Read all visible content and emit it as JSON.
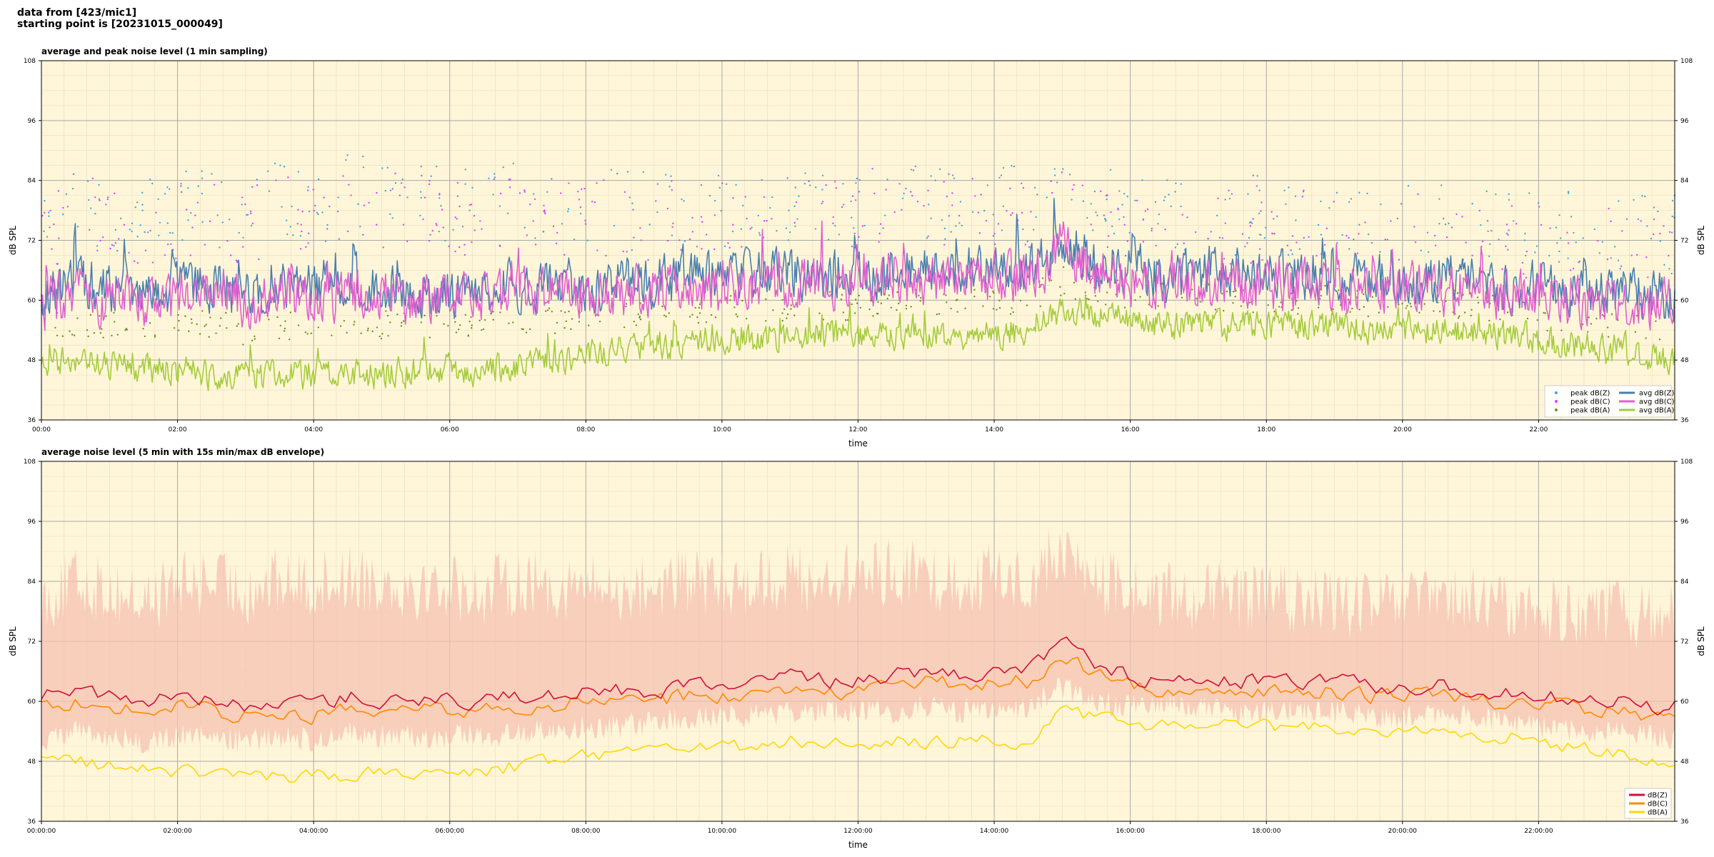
{
  "header": {
    "line1": "data from [423/mic1]",
    "line2": "starting point is [20231015_000049]"
  },
  "colors": {
    "plot_bg": "#fff6d9",
    "grid_major": "#a9a9a9",
    "grid_minor": "#e6dcb9",
    "peak_z": "#3fa7d6",
    "peak_c": "#e040fb",
    "peak_a": "#6b8e23",
    "avg_z": "#4a7fb0",
    "avg_c": "#e060d0",
    "avg_a": "#a4cc3c",
    "z": "#d0103a",
    "c": "#ff8a00",
    "a": "#ffd700",
    "envelope": "#f5c2b0"
  },
  "chart_data": [
    {
      "type": "line",
      "title": "average and peak noise level (1 min sampling)",
      "xlabel": "time",
      "ylabel": "dB SPL",
      "xlim": [
        "00:00",
        "24:00"
      ],
      "ylim": [
        36,
        108
      ],
      "yticks": [
        36,
        48,
        60,
        72,
        84,
        96,
        108
      ],
      "xtick_labels": [
        "00:00",
        "02:00",
        "04:00",
        "06:00",
        "08:00",
        "10:00",
        "12:00",
        "14:00",
        "16:00",
        "18:00",
        "20:00",
        "22:00"
      ],
      "grid": true,
      "legend_position": "bottom-right",
      "x_hours": [
        0,
        0.5,
        1,
        1.5,
        2,
        2.5,
        3,
        3.5,
        4,
        4.5,
        5,
        5.5,
        6,
        6.5,
        7,
        7.5,
        8,
        8.5,
        9,
        9.5,
        10,
        10.5,
        11,
        11.5,
        12,
        12.5,
        13,
        13.5,
        14,
        14.5,
        15,
        15.5,
        16,
        16.5,
        17,
        17.5,
        18,
        18.5,
        19,
        19.5,
        20,
        20.5,
        21,
        21.5,
        22,
        22.5,
        23,
        23.5,
        24
      ],
      "series": [
        {
          "name": "peak dB(Z)",
          "style": "dots",
          "values": [
            74,
            80,
            78,
            76,
            78,
            79,
            77,
            80,
            78,
            82,
            80,
            79,
            79,
            78,
            80,
            79,
            79,
            78,
            78,
            79,
            78,
            79,
            80,
            79,
            80,
            81,
            80,
            79,
            80,
            79,
            84,
            79,
            78,
            77,
            77,
            77,
            77,
            76,
            76,
            75,
            76,
            76,
            76,
            75,
            74,
            74,
            74,
            73,
            73
          ]
        },
        {
          "name": "peak dB(C)",
          "style": "dots",
          "values": [
            72,
            78,
            76,
            74,
            76,
            77,
            75,
            78,
            76,
            80,
            78,
            77,
            77,
            76,
            78,
            77,
            77,
            76,
            76,
            77,
            76,
            77,
            78,
            77,
            78,
            79,
            78,
            77,
            78,
            77,
            82,
            77,
            76,
            75,
            75,
            75,
            75,
            74,
            74,
            73,
            74,
            74,
            74,
            73,
            72,
            72,
            72,
            71,
            71
          ]
        },
        {
          "name": "peak dB(A)",
          "style": "dots",
          "values": [
            54,
            56,
            55,
            54,
            55,
            55,
            54,
            55,
            54,
            56,
            55,
            55,
            55,
            55,
            56,
            56,
            57,
            57,
            58,
            58,
            58,
            58,
            59,
            59,
            59,
            59,
            60,
            59,
            60,
            60,
            64,
            62,
            61,
            61,
            61,
            60,
            60,
            60,
            60,
            59,
            59,
            59,
            59,
            58,
            57,
            56,
            55,
            55,
            54
          ]
        },
        {
          "name": "avg dB(Z)",
          "style": "line",
          "values": [
            61,
            64,
            62,
            61,
            62,
            63,
            61,
            63,
            62,
            64,
            63,
            62,
            62,
            62,
            63,
            63,
            63,
            63,
            64,
            64,
            64,
            65,
            65,
            65,
            65,
            66,
            66,
            66,
            66,
            66,
            73,
            67,
            66,
            65,
            65,
            65,
            65,
            65,
            64,
            64,
            64,
            64,
            64,
            63,
            63,
            62,
            62,
            61,
            61
          ]
        },
        {
          "name": "avg dB(C)",
          "style": "line",
          "values": [
            59,
            62,
            60,
            59,
            60,
            61,
            59,
            61,
            60,
            62,
            61,
            60,
            60,
            60,
            61,
            61,
            61,
            61,
            62,
            62,
            62,
            63,
            63,
            63,
            63,
            64,
            64,
            64,
            64,
            64,
            71,
            65,
            64,
            63,
            63,
            63,
            63,
            63,
            62,
            62,
            62,
            62,
            62,
            61,
            61,
            60,
            60,
            59,
            59
          ]
        },
        {
          "name": "avg dB(A)",
          "style": "line",
          "values": [
            48,
            48,
            47,
            46,
            46,
            45,
            45,
            45,
            45,
            45,
            45,
            46,
            46,
            46,
            47,
            48,
            49,
            50,
            51,
            51,
            52,
            52,
            53,
            53,
            53,
            53,
            53,
            53,
            53,
            53,
            58,
            57,
            56,
            55,
            55,
            55,
            55,
            55,
            55,
            54,
            54,
            54,
            54,
            53,
            52,
            51,
            50,
            49,
            48
          ]
        }
      ]
    },
    {
      "type": "line",
      "title": "average noise level (5 min with 15s min/max dB envelope)",
      "xlabel": "time",
      "ylabel": "dB SPL",
      "xlim": [
        "00:00:00",
        "24:00:00"
      ],
      "ylim": [
        36,
        108
      ],
      "yticks": [
        36,
        48,
        60,
        72,
        84,
        96,
        108
      ],
      "xtick_labels": [
        "00:00:00",
        "02:00:00",
        "04:00:00",
        "06:00:00",
        "08:00:00",
        "10:00:00",
        "12:00:00",
        "14:00:00",
        "16:00:00",
        "18:00:00",
        "20:00:00",
        "22:00:00"
      ],
      "grid": true,
      "legend_position": "bottom-right",
      "x_hours": [
        0,
        0.5,
        1,
        1.5,
        2,
        2.5,
        3,
        3.5,
        4,
        4.5,
        5,
        5.5,
        6,
        6.5,
        7,
        7.5,
        8,
        8.5,
        9,
        9.5,
        10,
        10.5,
        11,
        11.5,
        12,
        12.5,
        13,
        13.5,
        14,
        14.5,
        15,
        15.5,
        16,
        16.5,
        17,
        17.5,
        18,
        18.5,
        19,
        19.5,
        20,
        20.5,
        21,
        21.5,
        22,
        22.5,
        23,
        23.5,
        24
      ],
      "envelope": {
        "max": [
          80,
          84,
          82,
          80,
          83,
          84,
          82,
          84,
          83,
          85,
          84,
          83,
          83,
          82,
          84,
          83,
          83,
          82,
          83,
          84,
          83,
          84,
          85,
          84,
          85,
          86,
          85,
          84,
          85,
          84,
          90,
          84,
          82,
          81,
          81,
          81,
          81,
          80,
          80,
          79,
          80,
          80,
          80,
          79,
          78,
          78,
          78,
          77,
          77
        ],
        "min": [
          52,
          54,
          53,
          52,
          53,
          53,
          52,
          53,
          52,
          54,
          53,
          53,
          53,
          53,
          54,
          54,
          55,
          55,
          56,
          56,
          57,
          57,
          58,
          58,
          58,
          58,
          59,
          58,
          59,
          59,
          63,
          60,
          59,
          59,
          59,
          58,
          58,
          58,
          58,
          57,
          57,
          57,
          57,
          56,
          55,
          54,
          54,
          53,
          53
        ]
      },
      "series": [
        {
          "name": "dB(Z)",
          "values": [
            61,
            62,
            61,
            60,
            61,
            60,
            59,
            60,
            59,
            61,
            60,
            60,
            60,
            60,
            61,
            61,
            62,
            62,
            62,
            63,
            63,
            64,
            65,
            64,
            64,
            65,
            66,
            65,
            66,
            66,
            72,
            67,
            65,
            64,
            64,
            64,
            64,
            64,
            64,
            63,
            63,
            63,
            62,
            62,
            61,
            61,
            60,
            59,
            59
          ]
        },
        {
          "name": "dB(C)",
          "values": [
            59,
            60,
            59,
            58,
            59,
            58,
            57,
            58,
            57,
            59,
            58,
            58,
            58,
            58,
            59,
            59,
            60,
            60,
            60,
            61,
            61,
            62,
            63,
            62,
            62,
            63,
            64,
            63,
            64,
            64,
            70,
            65,
            63,
            62,
            62,
            62,
            62,
            62,
            62,
            61,
            61,
            61,
            60,
            60,
            59,
            59,
            58,
            57,
            57
          ]
        },
        {
          "name": "dB(A)",
          "values": [
            48,
            48,
            47,
            47,
            46,
            46,
            45,
            45,
            45,
            45,
            46,
            46,
            47,
            46,
            47,
            48,
            49,
            49,
            50,
            50,
            51,
            51,
            52,
            52,
            52,
            52,
            52,
            52,
            52,
            52,
            58,
            57,
            56,
            55,
            55,
            55,
            55,
            55,
            55,
            54,
            54,
            54,
            53,
            53,
            52,
            51,
            50,
            49,
            48
          ]
        }
      ]
    }
  ]
}
